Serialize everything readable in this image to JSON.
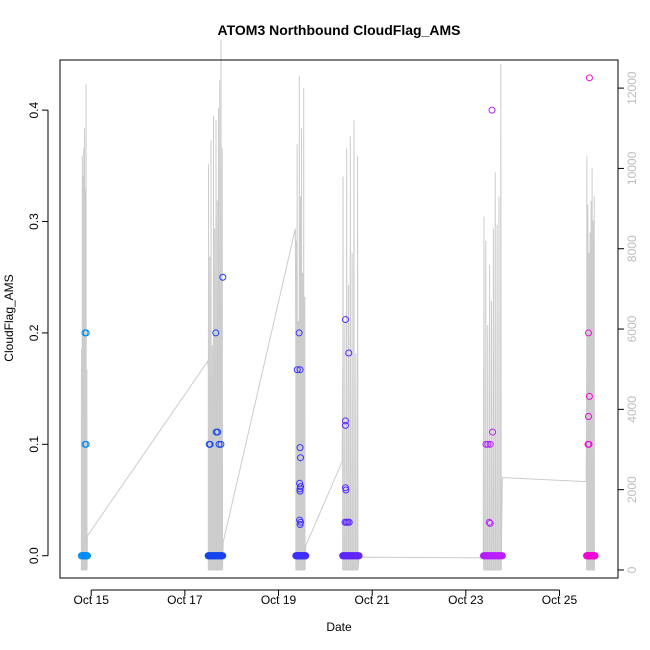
{
  "chart_data": {
    "type": "scatter",
    "title": "ATOM3 Northbound CloudFlag_AMS",
    "xlabel": "Date",
    "ylabel": "CloudFlag_AMS",
    "x_range_days": [
      "2016-10-14T08:00",
      "2016-10-26T06:00"
    ],
    "x_ticks": [
      "Oct 15",
      "Oct 17",
      "Oct 19",
      "Oct 21",
      "Oct 23",
      "Oct 25"
    ],
    "ylim": [
      -0.02,
      0.445
    ],
    "y_ticks": [
      "0.0",
      "0.1",
      "0.2",
      "0.3",
      "0.4"
    ],
    "y2lim": [
      -200,
      12700
    ],
    "y2_ticks": [
      "0",
      "2000",
      "4000",
      "6000",
      "8000",
      "10000",
      "12000"
    ],
    "colors": {
      "axes": "#000000",
      "secondary_line": "#cccccc",
      "secondary_tick": "#bdbdbd",
      "point_gradient": [
        "#00a0ff",
        "#0050e0",
        "#3333ff",
        "#7a1fff",
        "#c01fff",
        "#ff00cc"
      ]
    },
    "grid": false,
    "legend": "none",
    "series": [
      {
        "marker": "open-circle",
        "flights": [
          {
            "date": "2016-10-14",
            "start": 0.79,
            "end": 0.92,
            "points": [
              [
                0.8,
                0.0
              ],
              [
                0.82,
                0.0
              ],
              [
                0.84,
                0.0
              ],
              [
                0.86,
                0.0
              ],
              [
                0.88,
                0.0
              ],
              [
                0.9,
                0.0
              ],
              [
                0.92,
                0.0
              ],
              [
                0.866,
                0.2
              ],
              [
                0.893,
                0.2
              ],
              [
                0.866,
                0.1
              ],
              [
                0.893,
                0.1
              ]
            ]
          },
          {
            "date": "2016-10-17",
            "start": 0.5,
            "end": 0.82,
            "points": [
              [
                0.5,
                0.0
              ],
              [
                0.55,
                0.0
              ],
              [
                0.6,
                0.0
              ],
              [
                0.65,
                0.0
              ],
              [
                0.7,
                0.0
              ],
              [
                0.75,
                0.0
              ],
              [
                0.8,
                0.0
              ],
              [
                0.52,
                0.1
              ],
              [
                0.54,
                0.1
              ],
              [
                0.66,
                0.2
              ],
              [
                0.67,
                0.111
              ],
              [
                0.7,
                0.111
              ],
              [
                0.73,
                0.1
              ],
              [
                0.77,
                0.1
              ],
              [
                0.81,
                0.25
              ]
            ]
          },
          {
            "date": "2016-10-19",
            "start": 0.37,
            "end": 0.58,
            "points": [
              [
                0.38,
                0.0
              ],
              [
                0.42,
                0.0
              ],
              [
                0.46,
                0.0
              ],
              [
                0.5,
                0.0
              ],
              [
                0.54,
                0.0
              ],
              [
                0.58,
                0.0
              ],
              [
                0.4,
                0.167
              ],
              [
                0.46,
                0.167
              ],
              [
                0.44,
                0.2
              ],
              [
                0.46,
                0.097
              ],
              [
                0.47,
                0.088
              ],
              [
                0.45,
                0.065
              ],
              [
                0.47,
                0.062
              ],
              [
                0.46,
                0.06
              ],
              [
                0.46,
                0.058
              ],
              [
                0.45,
                0.032
              ],
              [
                0.47,
                0.03
              ],
              [
                0.46,
                0.028
              ]
            ]
          },
          {
            "date": "2016-10-20",
            "start": 0.37,
            "end": 0.72,
            "points": [
              [
                0.38,
                0.0
              ],
              [
                0.45,
                0.0
              ],
              [
                0.52,
                0.0
              ],
              [
                0.59,
                0.0
              ],
              [
                0.66,
                0.0
              ],
              [
                0.72,
                0.0
              ],
              [
                0.43,
                0.212
              ],
              [
                0.43,
                0.121
              ],
              [
                0.43,
                0.117
              ],
              [
                0.5,
                0.182
              ],
              [
                0.43,
                0.061
              ],
              [
                0.44,
                0.059
              ],
              [
                0.42,
                0.03
              ],
              [
                0.45,
                0.03
              ],
              [
                0.48,
                0.03
              ],
              [
                0.51,
                0.03
              ]
            ]
          },
          {
            "date": "2016-10-23",
            "start": 0.38,
            "end": 0.78,
            "points": [
              [
                0.38,
                0.0
              ],
              [
                0.46,
                0.0
              ],
              [
                0.54,
                0.0
              ],
              [
                0.62,
                0.0
              ],
              [
                0.7,
                0.0
              ],
              [
                0.78,
                0.0
              ],
              [
                0.43,
                0.1
              ],
              [
                0.47,
                0.1
              ],
              [
                0.52,
                0.1
              ],
              [
                0.57,
                0.111
              ],
              [
                0.5,
                0.03
              ],
              [
                0.52,
                0.029
              ],
              [
                0.56,
                0.4
              ]
            ]
          },
          {
            "date": "2016-10-25",
            "start": 0.58,
            "end": 0.76,
            "points": [
              [
                0.58,
                0.0
              ],
              [
                0.62,
                0.0
              ],
              [
                0.66,
                0.0
              ],
              [
                0.7,
                0.0
              ],
              [
                0.74,
                0.0
              ],
              [
                0.76,
                0.0
              ],
              [
                0.62,
                0.2
              ],
              [
                0.64,
                0.143
              ],
              [
                0.62,
                0.125
              ],
              [
                0.61,
                0.1
              ],
              [
                0.63,
                0.1
              ],
              [
                0.64,
                0.429
              ]
            ]
          }
        ]
      }
    ],
    "secondary_series": {
      "type": "line",
      "color": "#cccccc",
      "flights": [
        {
          "date": "2016-10-14",
          "start": 0.79,
          "end": 0.92,
          "peaks": [
            5500,
            10300,
            9800,
            10500,
            11000,
            9500,
            12100,
            5000
          ],
          "after": 850
        },
        {
          "date": "2016-10-17",
          "start": 0.5,
          "end": 0.82,
          "peaks": [
            10100,
            7800,
            10700,
            5600,
            11300,
            8500,
            11200,
            9200,
            11500,
            12200,
            13200,
            10500
          ],
          "before": 5200,
          "after": 700
        },
        {
          "date": "2016-10-19",
          "start": 0.37,
          "end": 0.58,
          "peaks": [
            8200,
            10600,
            6200,
            12300,
            9300,
            11000,
            7400,
            12000,
            6800
          ],
          "before": 8500,
          "after": 600
        },
        {
          "date": "2016-10-20",
          "start": 0.37,
          "end": 0.72,
          "peaks": [
            9800,
            6200,
            10500,
            7100,
            10800,
            7900,
            11200,
            5400,
            10300
          ],
          "before": 2700,
          "after": 320
        },
        {
          "date": "2016-10-23",
          "start": 0.38,
          "end": 0.78,
          "peaks": [
            8800,
            8200,
            6100,
            7600,
            6700,
            8500,
            9900,
            8600,
            9300,
            12600
          ],
          "before": 300,
          "after": 2300
        },
        {
          "date": "2016-10-25",
          "start": 0.58,
          "end": 0.76,
          "peaks": [
            10300,
            9100,
            7900,
            8400,
            9200,
            10000,
            8700,
            9300
          ],
          "before": 2200,
          "after": 0
        }
      ]
    }
  }
}
